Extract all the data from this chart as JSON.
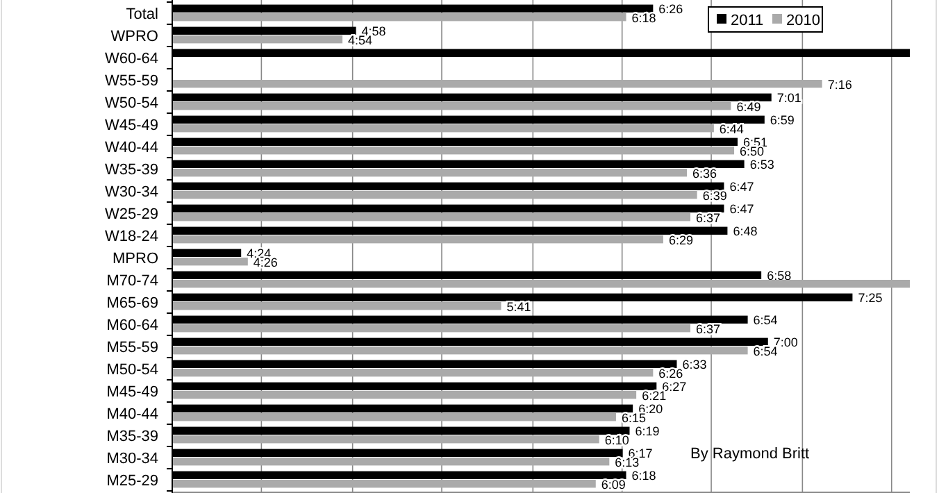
{
  "chart_data": {
    "type": "bar",
    "orientation": "horizontal",
    "categories": [
      "Total",
      "WPRO",
      "W60-64",
      "W55-59",
      "W50-54",
      "W45-49",
      "W40-44",
      "W35-39",
      "W30-34",
      "W25-29",
      "W18-24",
      "MPRO",
      "M70-74",
      "M65-69",
      "M60-64",
      "M55-59",
      "M50-54",
      "M45-49",
      "M40-44",
      "M35-39",
      "M30-34",
      "M25-29"
    ],
    "series": [
      {
        "name": "2011",
        "color": "#000000",
        "values": [
          6.433,
          4.967,
          7.7,
          null,
          7.017,
          6.983,
          6.85,
          6.883,
          6.783,
          6.783,
          6.8,
          4.4,
          6.967,
          7.417,
          6.9,
          7,
          6.55,
          6.45,
          6.333,
          6.317,
          6.283,
          6.3
        ],
        "value_labels": [
          "6:26",
          "4:58",
          null,
          null,
          "7:01",
          "6:59",
          "6:51",
          "6:53",
          "6:47",
          "6:47",
          "6:48",
          "4:24",
          "6:58",
          "7:25",
          "6:54",
          "7:00",
          "6:33",
          "6:27",
          "6:20",
          "6:19",
          "6:17",
          "6:18"
        ]
      },
      {
        "name": "2010",
        "color": "#aaaaaa",
        "values": [
          6.3,
          4.9,
          null,
          7.267,
          6.817,
          6.733,
          6.833,
          6.6,
          6.65,
          6.617,
          6.483,
          4.433,
          7.7,
          5.683,
          6.617,
          6.9,
          6.433,
          6.35,
          6.25,
          6.167,
          6.217,
          6.15
        ],
        "value_labels": [
          "6:18",
          "4:54",
          null,
          "7:16",
          "6:49",
          "6:44",
          "6:50",
          "6:36",
          "6:39",
          "6:37",
          "6:29",
          "4:26",
          null,
          "5:41",
          "6:37",
          "6:54",
          "6:26",
          "6:21",
          "6:15",
          "6:10",
          "6:13",
          "6:09"
        ]
      }
    ],
    "xlim": [
      4.06,
      7.7
    ],
    "xticks": [
      {
        "value": 4.5,
        "label": null
      },
      {
        "value": 4.95,
        "label": null
      },
      {
        "value": 5.39,
        "label": null
      },
      {
        "value": 5.84,
        "label": null
      },
      {
        "value": 6.28,
        "label": null
      },
      {
        "value": 6.72,
        "label": null
      },
      {
        "value": 7.17,
        "label": null
      },
      {
        "value": 7.61,
        "label": null
      }
    ],
    "grid": "x",
    "legend": "top right",
    "tick_labels": "y",
    "annotations": [
      "By Raymond Britt"
    ]
  }
}
